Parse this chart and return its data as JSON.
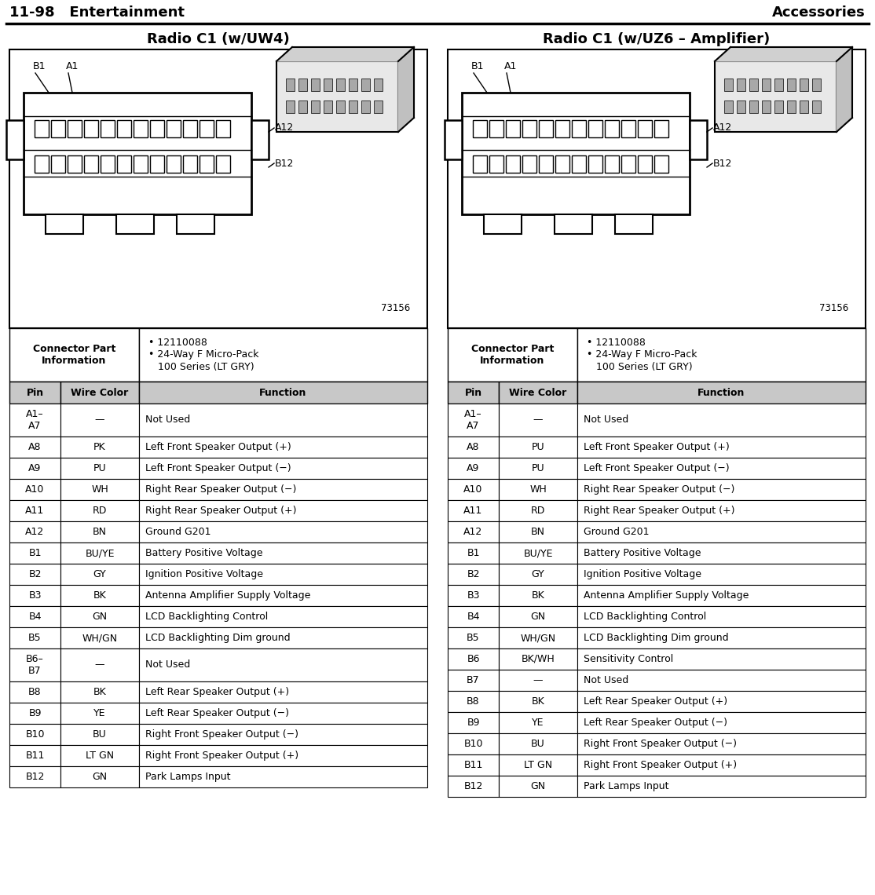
{
  "page_header_left": "11-98   Entertainment",
  "page_header_right": "Accessories",
  "left_title": "Radio C1 (w/UW4)",
  "right_title": "Radio C1 (w/UZ6 – Amplifier)",
  "left_rows": [
    [
      "A1–\nA7",
      "—",
      "Not Used"
    ],
    [
      "A8",
      "PK",
      "Left Front Speaker Output (+)"
    ],
    [
      "A9",
      "PU",
      "Left Front Speaker Output (−)"
    ],
    [
      "A10",
      "WH",
      "Right Rear Speaker Output (−)"
    ],
    [
      "A11",
      "RD",
      "Right Rear Speaker Output (+)"
    ],
    [
      "A12",
      "BN",
      "Ground G201"
    ],
    [
      "B1",
      "BU/YE",
      "Battery Positive Voltage"
    ],
    [
      "B2",
      "GY",
      "Ignition Positive Voltage"
    ],
    [
      "B3",
      "BK",
      "Antenna Amplifier Supply Voltage"
    ],
    [
      "B4",
      "GN",
      "LCD Backlighting Control"
    ],
    [
      "B5",
      "WH/GN",
      "LCD Backlighting Dim ground"
    ],
    [
      "B6–\nB7",
      "—",
      "Not Used"
    ],
    [
      "B8",
      "BK",
      "Left Rear Speaker Output (+)"
    ],
    [
      "B9",
      "YE",
      "Left Rear Speaker Output (−)"
    ],
    [
      "B10",
      "BU",
      "Right Front Speaker Output (−)"
    ],
    [
      "B11",
      "LT GN",
      "Right Front Speaker Output (+)"
    ],
    [
      "B12",
      "GN",
      "Park Lamps Input"
    ]
  ],
  "right_rows": [
    [
      "A1–\nA7",
      "—",
      "Not Used"
    ],
    [
      "A8",
      "PU",
      "Left Front Speaker Output (+)"
    ],
    [
      "A9",
      "PU",
      "Left Front Speaker Output (−)"
    ],
    [
      "A10",
      "WH",
      "Right Rear Speaker Output (−)"
    ],
    [
      "A11",
      "RD",
      "Right Rear Speaker Output (+)"
    ],
    [
      "A12",
      "BN",
      "Ground G201"
    ],
    [
      "B1",
      "BU/YE",
      "Battery Positive Voltage"
    ],
    [
      "B2",
      "GY",
      "Ignition Positive Voltage"
    ],
    [
      "B3",
      "BK",
      "Antenna Amplifier Supply Voltage"
    ],
    [
      "B4",
      "GN",
      "LCD Backlighting Control"
    ],
    [
      "B5",
      "WH/GN",
      "LCD Backlighting Dim ground"
    ],
    [
      "B6",
      "BK/WH",
      "Sensitivity Control"
    ],
    [
      "B7",
      "—",
      "Not Used"
    ],
    [
      "B8",
      "BK",
      "Left Rear Speaker Output (+)"
    ],
    [
      "B9",
      "YE",
      "Left Rear Speaker Output (−)"
    ],
    [
      "B10",
      "BU",
      "Right Front Speaker Output (−)"
    ],
    [
      "B11",
      "LT GN",
      "Right Front Speaker Output (+)"
    ],
    [
      "B12",
      "GN",
      "Park Lamps Input"
    ]
  ],
  "diagram_number": "73156",
  "bg_color": "#ffffff"
}
